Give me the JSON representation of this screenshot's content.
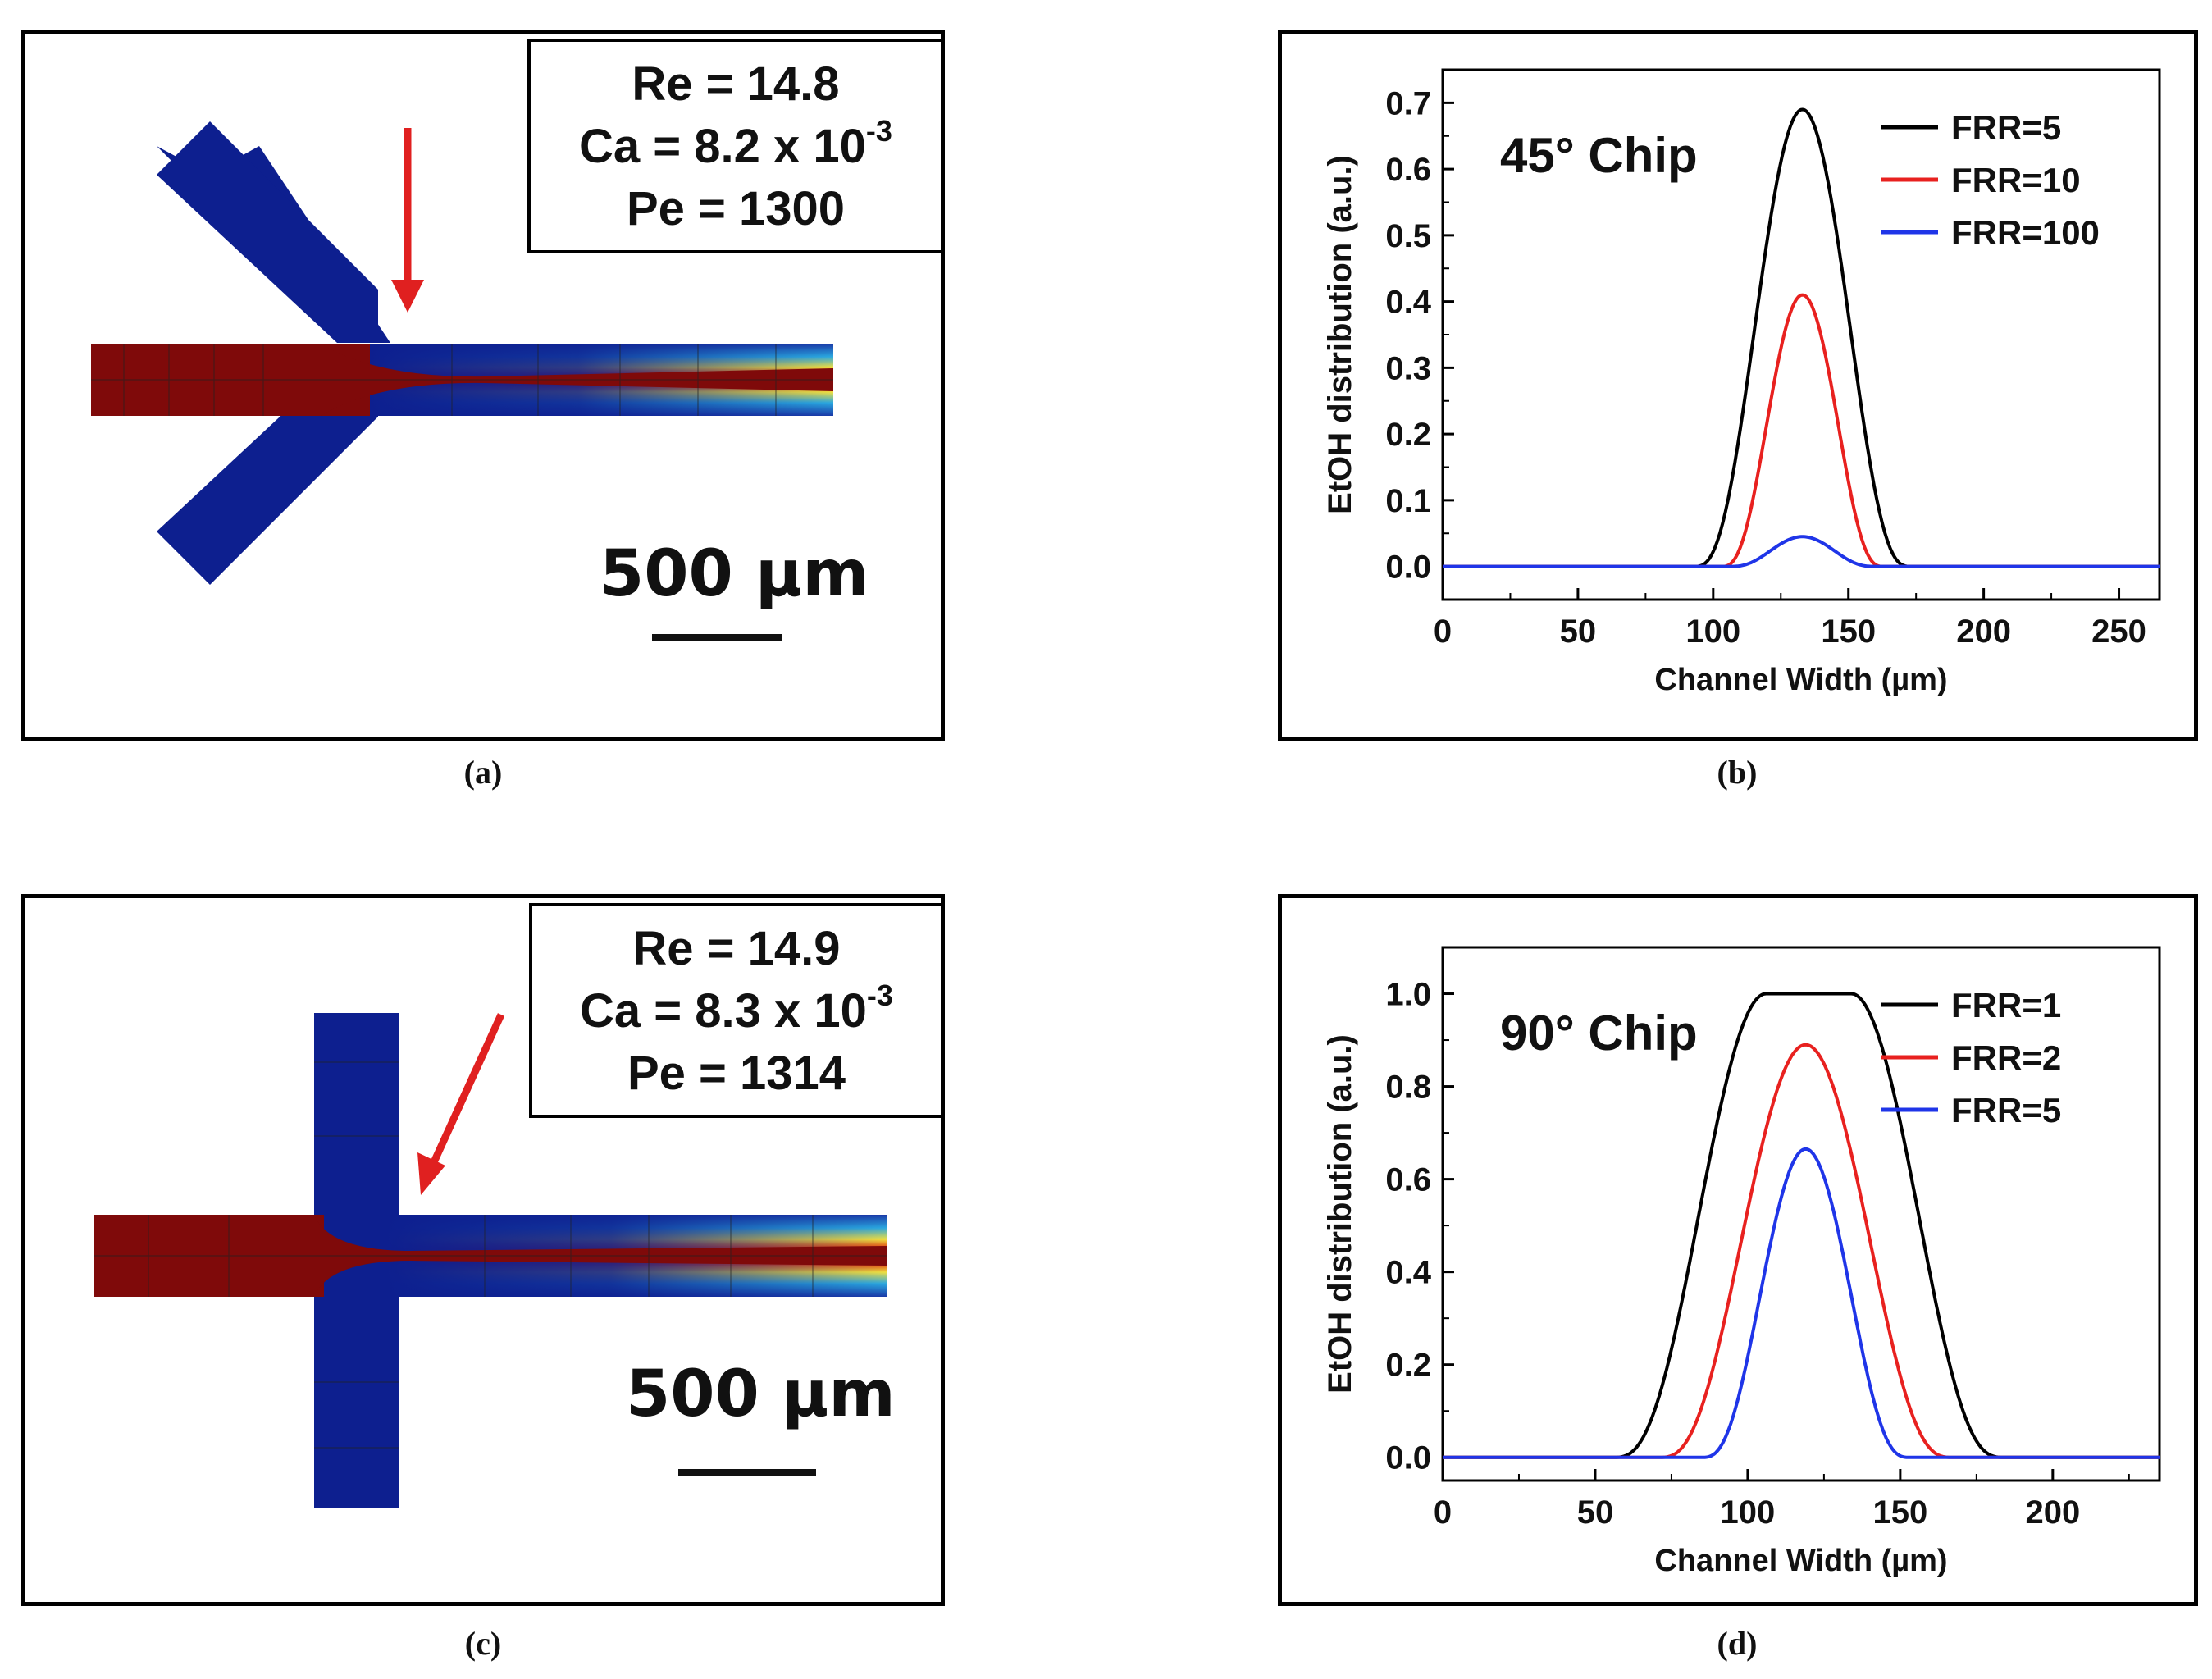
{
  "panels": {
    "a": {
      "caption": "(a)",
      "info": {
        "re": "Re = 14.8",
        "ca_prefix": "Ca = 8.2 x 10",
        "ca_exp": "-3",
        "pe": "Pe = 1300"
      },
      "scale_label": "500 µm"
    },
    "b": {
      "caption": "(b)"
    },
    "c": {
      "caption": "(c)",
      "info": {
        "re": "Re = 14.9",
        "ca_prefix": "Ca = 8.3 x 10",
        "ca_exp": "-3",
        "pe": "Pe = 1314"
      },
      "scale_label": "500 µm"
    },
    "d": {
      "caption": "(d)"
    }
  },
  "colors": {
    "ethanol": "#7f0a0a",
    "water": "#0d1f8f",
    "arrow": "#e02020",
    "frr_black": "#000000",
    "frr_red": "#e8211f",
    "frr_blue": "#1f35e8"
  },
  "chart_data": [
    {
      "type": "line",
      "title": "45° Chip",
      "xlabel": "Channel Width (µm)",
      "ylabel": "EtOH distribution (a.u.)",
      "xlim": [
        0,
        265
      ],
      "ylim": [
        -0.05,
        0.75
      ],
      "xticks": [
        0,
        50,
        100,
        150,
        200,
        250
      ],
      "yticks": [
        0.0,
        0.1,
        0.2,
        0.3,
        0.4,
        0.5,
        0.6,
        0.7
      ],
      "ytick_labels": [
        "0.0",
        "0.1",
        "0.2",
        "0.3",
        "0.4",
        "0.5",
        "0.6",
        "0.7"
      ],
      "legend_position": "top-right",
      "series": [
        {
          "name": "FRR=5",
          "color": "#000000",
          "peak": 0.69,
          "center": 133,
          "halfwidth": 40,
          "flat": 0
        },
        {
          "name": "FRR=10",
          "color": "#e8211f",
          "peak": 0.41,
          "center": 133,
          "halfwidth": 30,
          "flat": 0
        },
        {
          "name": "FRR=100",
          "color": "#1f35e8",
          "peak": 0.045,
          "center": 133,
          "halfwidth": 27,
          "flat": 0
        }
      ]
    },
    {
      "type": "line",
      "title": "90° Chip",
      "xlabel": "Channel Width (µm)",
      "ylabel": "EtOH distribution (a.u.)",
      "xlim": [
        0,
        235
      ],
      "ylim": [
        -0.05,
        1.1
      ],
      "xticks": [
        0,
        50,
        100,
        150,
        200
      ],
      "yticks": [
        0.0,
        0.2,
        0.4,
        0.6,
        0.8,
        1.0
      ],
      "ytick_labels": [
        "0.0",
        "0.2",
        "0.4",
        "0.6",
        "0.8",
        "1.0"
      ],
      "legend_position": "top-right",
      "series": [
        {
          "name": "FRR=1",
          "color": "#000000",
          "peak": 1.0,
          "center": 120,
          "halfwidth": 50,
          "flat": 14
        },
        {
          "name": "FRR=2",
          "color": "#e8211f",
          "peak": 0.89,
          "center": 119,
          "halfwidth": 48,
          "flat": 0
        },
        {
          "name": "FRR=5",
          "color": "#1f35e8",
          "peak": 0.665,
          "center": 119,
          "halfwidth": 34,
          "flat": 0
        }
      ]
    }
  ]
}
